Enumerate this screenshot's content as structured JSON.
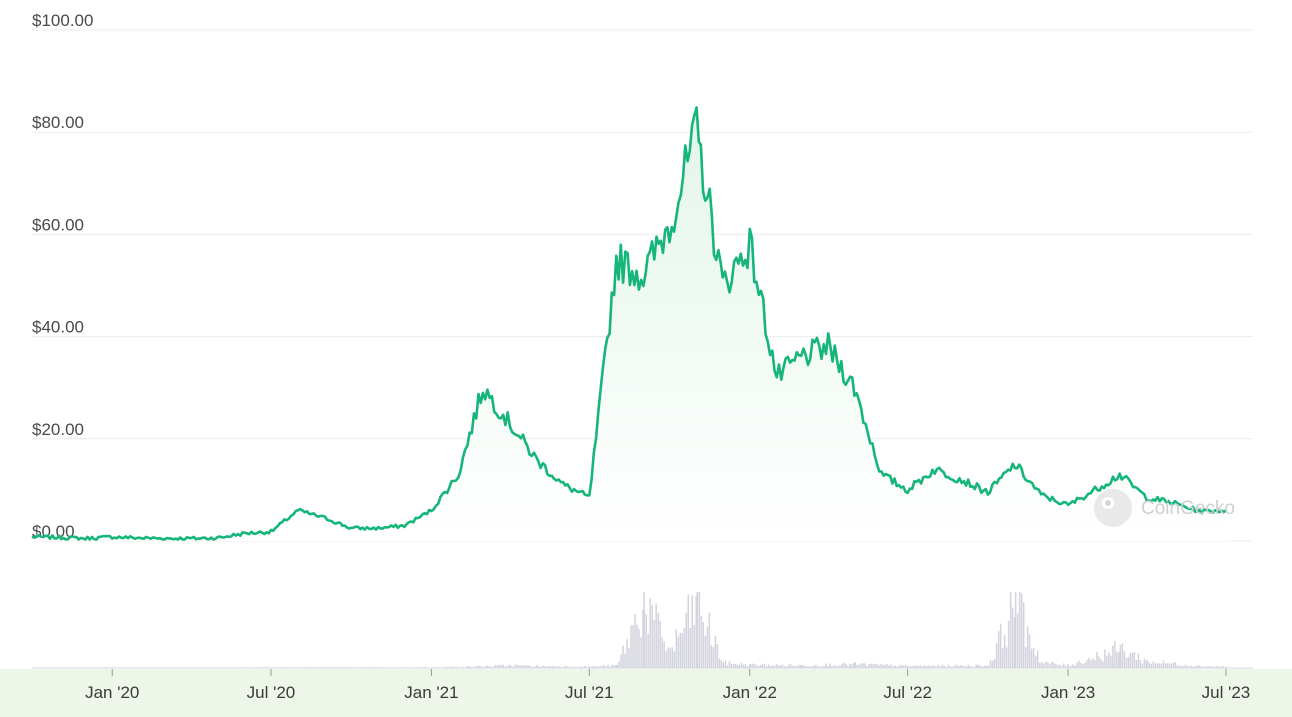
{
  "watermark": "CoinGecko",
  "colors": {
    "line": "#16b57a",
    "area_top": "#e3f5ea",
    "volume": "#d2d3dd",
    "grid": "#ececec",
    "navigator_bg": "#eef6ea"
  },
  "chart_data": {
    "type": "area",
    "y_ticks": [
      "$0.00",
      "$20.00",
      "$40.00",
      "$60.00",
      "$80.00",
      "$100.00"
    ],
    "y_tick_values": [
      0,
      20,
      40,
      60,
      80,
      100
    ],
    "x_ticks": [
      "Jan '20",
      "Jul '20",
      "Jan '21",
      "Jul '21",
      "Jan '22",
      "Jul '22",
      "Jan '23",
      "Jul '23"
    ],
    "ylim": [
      0,
      100
    ],
    "grid": true,
    "series": [
      {
        "x": [
          "2019-10",
          "2019-11",
          "2019-12",
          "2020-01",
          "2020-02",
          "2020-03",
          "2020-04",
          "2020-05",
          "2020-06",
          "2020-07",
          "2020-08",
          "2020-09",
          "2020-10",
          "2020-11",
          "2020-12",
          "2021-01",
          "2021-02",
          "2021-03",
          "2021-04",
          "2021-05",
          "2021-06",
          "2021-07",
          "2021-08",
          "2021-09",
          "2021-10",
          "2021-11",
          "2021-12",
          "2022-01",
          "2022-02",
          "2022-03",
          "2022-04",
          "2022-05",
          "2022-06",
          "2022-07",
          "2022-08",
          "2022-09",
          "2022-10",
          "2022-11",
          "2022-12",
          "2023-01",
          "2023-02",
          "2023-03",
          "2023-04",
          "2023-05",
          "2023-06",
          "2023-07"
        ],
        "values": [
          0.8,
          0.7,
          0.5,
          0.8,
          0.6,
          0.5,
          0.5,
          0.6,
          1.5,
          1.8,
          6,
          4.5,
          2.5,
          2.5,
          3,
          6,
          13,
          30,
          23,
          16,
          11,
          8.5,
          55,
          52,
          62,
          80,
          50,
          58,
          32,
          36,
          38,
          30,
          13,
          10,
          14,
          12,
          9.5,
          15,
          9,
          7,
          10,
          13,
          8.5,
          7.5,
          5.8,
          6
        ]
      }
    ],
    "volume": {
      "x": [
        "2019-10",
        "2020-01",
        "2020-04",
        "2020-07",
        "2020-09",
        "2020-12",
        "2021-02",
        "2021-04",
        "2021-05",
        "2021-07",
        "2021-08",
        "2021-09",
        "2021-10",
        "2021-11",
        "2021-12",
        "2022-01",
        "2022-03",
        "2022-05",
        "2022-07",
        "2022-10",
        "2022-11",
        "2022-12",
        "2023-01",
        "2023-03",
        "2023-04",
        "2023-06",
        "2023-07"
      ],
      "values": [
        0.3,
        0.4,
        0.5,
        1,
        1.2,
        0.6,
        1.5,
        4,
        3,
        2,
        4,
        100,
        25,
        100,
        8,
        5,
        4,
        6,
        3,
        4,
        100,
        8,
        4,
        30,
        10,
        3,
        2
      ]
    }
  }
}
